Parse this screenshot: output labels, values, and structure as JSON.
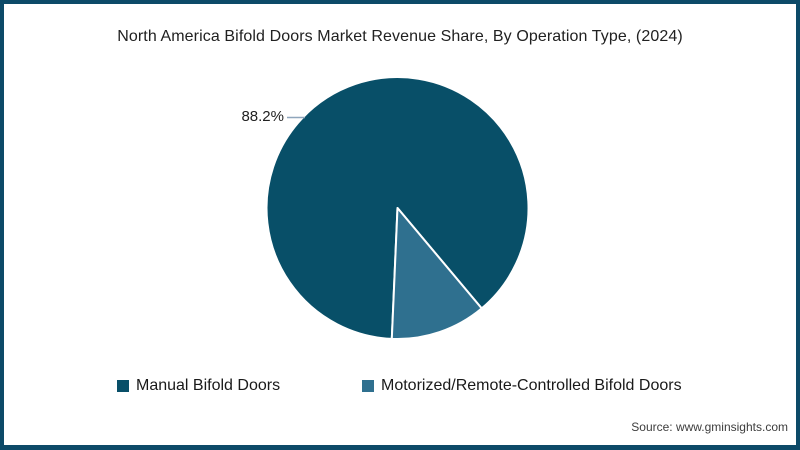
{
  "page": {
    "background": "#ffffff",
    "border_color": "#0D4A68"
  },
  "chart_data": {
    "type": "pie",
    "title": "North America Bifold Doors Market Revenue Share, By Operation Type, (2024)",
    "slices": [
      {
        "label": "Manual Bifold Doors",
        "value": 88.2,
        "color": "#084F68",
        "data_label": "88.2%"
      },
      {
        "label": "Motorized/Remote-Controlled Bifold Doors",
        "value": 11.8,
        "color": "#2F708F",
        "data_label": ""
      }
    ],
    "start_angle_deg": 182.5,
    "slice_border_color": "#ffffff",
    "leader_line_color": "#8FA6BC",
    "legend_position": "bottom",
    "source": "Source: www.gminsights.com"
  }
}
